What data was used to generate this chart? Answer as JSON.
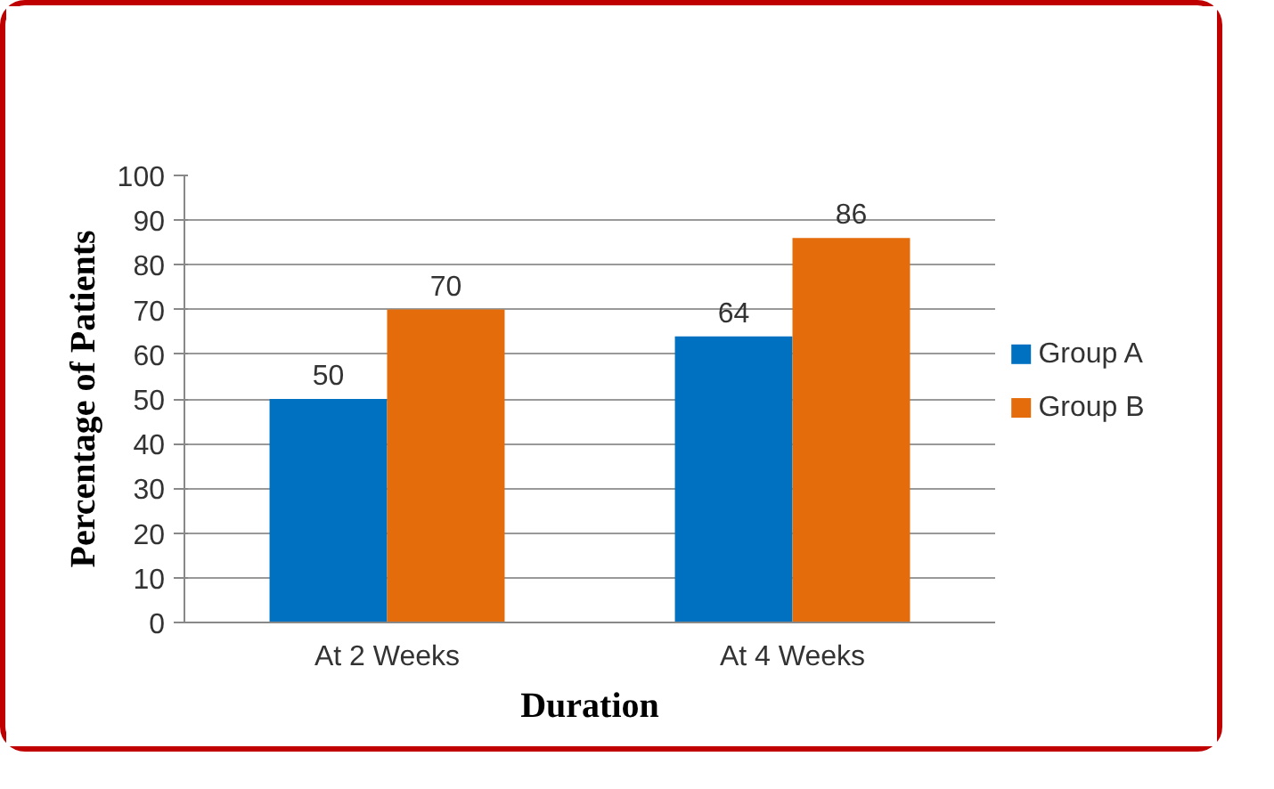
{
  "chart_data": {
    "type": "bar",
    "xlabel": "Duration",
    "ylabel": "Percentage of Patients",
    "categories": [
      "At 2 Weeks",
      "At 4 Weeks"
    ],
    "series": [
      {
        "name": "Group A",
        "color": "#0070c0",
        "values": [
          50,
          64
        ]
      },
      {
        "name": "Group B",
        "color": "#e46c0a",
        "values": [
          70,
          86
        ]
      }
    ],
    "ylim": [
      0,
      100
    ],
    "yticks": [
      0,
      10,
      20,
      30,
      40,
      50,
      60,
      70,
      80,
      90,
      100
    ],
    "grid": "y",
    "legend": "right",
    "data_labels": true
  }
}
